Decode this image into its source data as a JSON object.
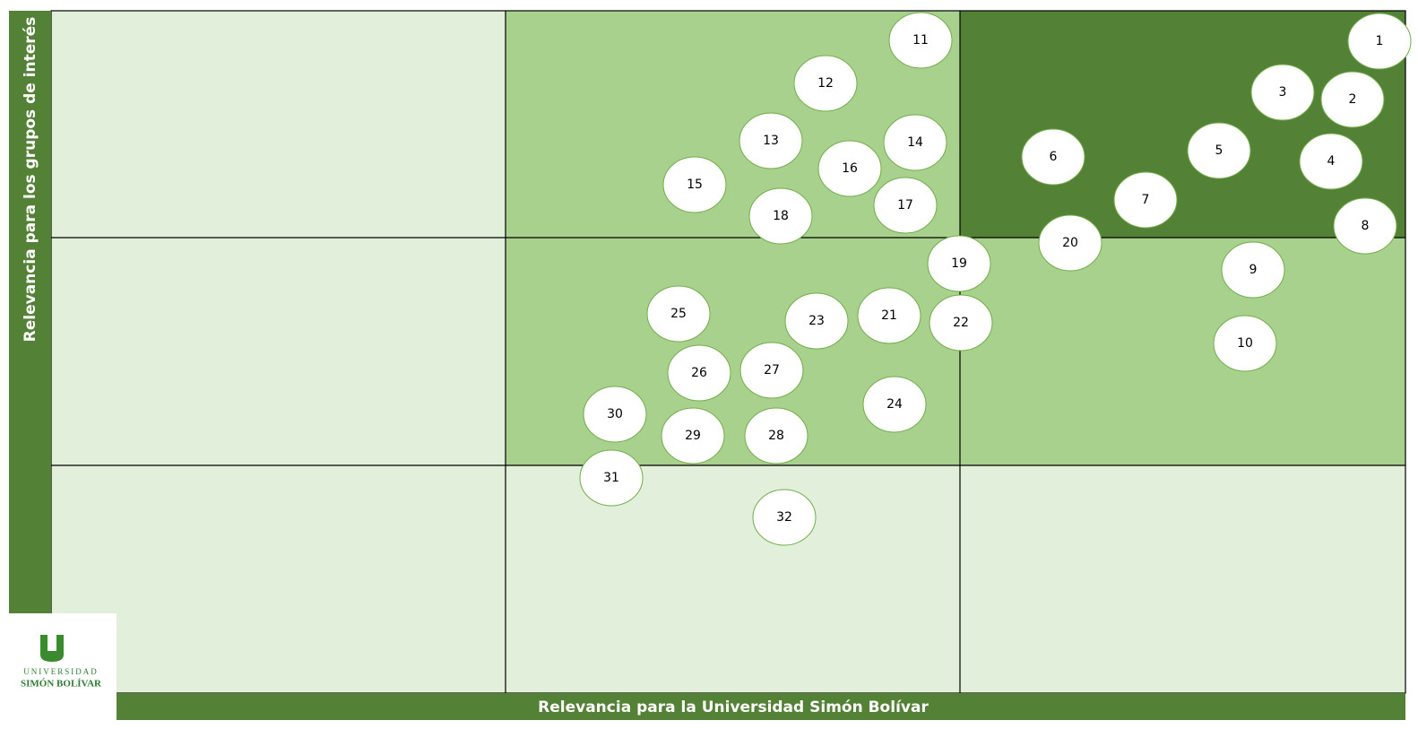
{
  "y_axis_label": "Relevancia para los grupos de interés",
  "x_axis_label": "Relevancia para la Universidad Simón Bolívar",
  "logo": {
    "line1": "UNIVERSIDAD",
    "line2": "SIMÓN BOLÍVAR"
  },
  "nodes": [
    {
      "label": "1"
    },
    {
      "label": "2"
    },
    {
      "label": "3"
    },
    {
      "label": "4"
    },
    {
      "label": "5"
    },
    {
      "label": "6"
    },
    {
      "label": "7"
    },
    {
      "label": "8"
    },
    {
      "label": "9"
    },
    {
      "label": "10"
    },
    {
      "label": "11"
    },
    {
      "label": "12"
    },
    {
      "label": "13"
    },
    {
      "label": "14"
    },
    {
      "label": "15"
    },
    {
      "label": "16"
    },
    {
      "label": "17"
    },
    {
      "label": "18"
    },
    {
      "label": "19"
    },
    {
      "label": "20"
    },
    {
      "label": "21"
    },
    {
      "label": "22"
    },
    {
      "label": "23"
    },
    {
      "label": "24"
    },
    {
      "label": "25"
    },
    {
      "label": "26"
    },
    {
      "label": "27"
    },
    {
      "label": "28"
    },
    {
      "label": "29"
    },
    {
      "label": "30"
    },
    {
      "label": "31"
    },
    {
      "label": "32"
    }
  ]
}
